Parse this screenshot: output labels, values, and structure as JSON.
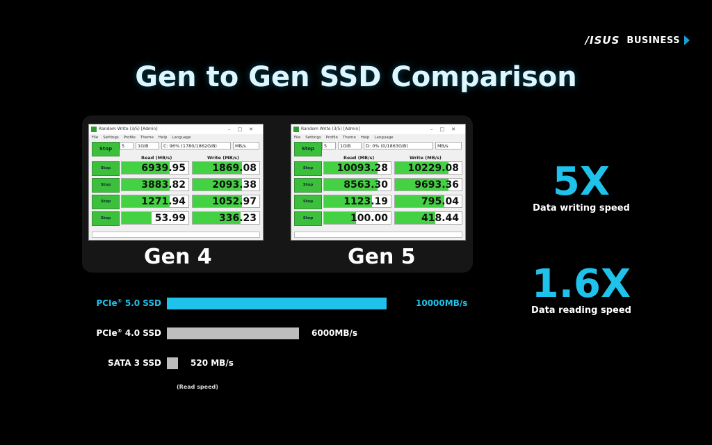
{
  "brand": {
    "logo": "/ISUS",
    "business": "BUSINESS",
    "chevron_color": "#1aa0d8"
  },
  "title": "Gen to Gen SSD Comparison",
  "benchmarks": [
    {
      "id": "gen4",
      "label": "Gen 4",
      "window_title": "Random Write (3/5) [Admin]",
      "menu": [
        "File",
        "Settings",
        "Profile",
        "Theme",
        "Help",
        "Language"
      ],
      "all_button": "Stop",
      "count": "5",
      "size": "1GiB",
      "drive": "C: 96% (1780/1862GiB)",
      "unit": "MB/s",
      "read_header": "Read (MB/s)",
      "write_header": "Write (MB/s)",
      "rows": [
        {
          "button": "Stop",
          "read": "6939.95",
          "write": "1869.08",
          "read_fill": 0.72,
          "write_fill": 0.74
        },
        {
          "button": "Stop",
          "read": "3883.82",
          "write": "2093.38",
          "read_fill": 0.72,
          "write_fill": 0.74
        },
        {
          "button": "Stop",
          "read": "1271.94",
          "write": "1052.97",
          "read_fill": 0.72,
          "write_fill": 0.74
        },
        {
          "button": "Stop",
          "read": "53.99",
          "write": "336.23",
          "read_fill": 0.45,
          "write_fill": 0.72
        }
      ]
    },
    {
      "id": "gen5",
      "label": "Gen 5",
      "window_title": "Random Write (3/5) [Admin]",
      "menu": [
        "File",
        "Settings",
        "Profile",
        "Theme",
        "Help",
        "Language"
      ],
      "all_button": "Stop",
      "count": "5",
      "size": "1GiB",
      "drive": "D: 0% (0/1863GiB)",
      "unit": "MB/s",
      "read_header": "Read (MB/s)",
      "write_header": "Write (MB/s)",
      "rows": [
        {
          "button": "Stop",
          "read": "10093.28",
          "write": "10229.08",
          "read_fill": 0.8,
          "write_fill": 0.8
        },
        {
          "button": "Stop",
          "read": "8563.30",
          "write": "9693.36",
          "read_fill": 0.8,
          "write_fill": 0.8
        },
        {
          "button": "Stop",
          "read": "1123.19",
          "write": "795.04",
          "read_fill": 0.72,
          "write_fill": 0.74
        },
        {
          "button": "Stop",
          "read": "100.00",
          "write": "418.44",
          "read_fill": 0.48,
          "write_fill": 0.6
        }
      ]
    }
  ],
  "stats": [
    {
      "value": "5X",
      "caption": "Data writing speed"
    },
    {
      "value": "1.6X",
      "caption": "Data reading speed"
    }
  ],
  "speed_bars": {
    "max_value": 10000,
    "items": [
      {
        "label_main": "PCIe",
        "label_sup": "®",
        "label_rest": " 5.0 SSD",
        "value": 10000,
        "value_text": "10000MB/s",
        "color": "#1ec2ea",
        "label_color": "#1ec2ea"
      },
      {
        "label_main": "PCIe",
        "label_sup": "®",
        "label_rest": " 4.0 SSD",
        "value": 6000,
        "value_text": "6000MB/s",
        "color": "#bdbdbd",
        "label_color": "#ffffff"
      },
      {
        "label_main": "SATA 3 SSD",
        "label_sup": "",
        "label_rest": "",
        "value": 520,
        "value_text": "520 MB/s",
        "color": "#bdbdbd",
        "label_color": "#ffffff"
      }
    ],
    "note": "(Read speed)"
  }
}
